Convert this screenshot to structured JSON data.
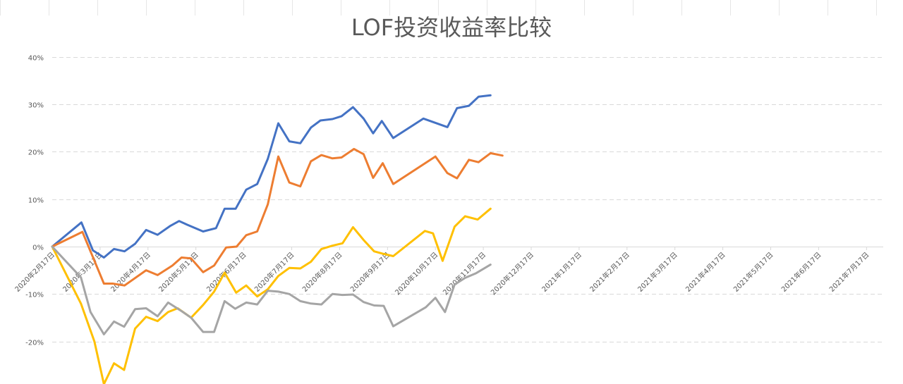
{
  "chart_data": {
    "type": "line",
    "title": "LOF投资收益率比较",
    "xlabel": "",
    "ylabel": "",
    "ylim": [
      -0.3,
      0.4
    ],
    "grid": true,
    "legend": "none",
    "y_ticks": [
      {
        "value": 0.4,
        "label": "40%"
      },
      {
        "value": 0.3,
        "label": "30%"
      },
      {
        "value": 0.2,
        "label": "20%"
      },
      {
        "value": 0.1,
        "label": "10%"
      },
      {
        "value": 0.0,
        "label": "0%"
      },
      {
        "value": -0.1,
        "label": "-10%"
      },
      {
        "value": -0.2,
        "label": "-20%"
      }
    ],
    "x_ticks": [
      "2020年2月17日",
      "2020年3月17日",
      "2020年4月17日",
      "2020年5月17日",
      "2020年6月17日",
      "2020年7月17日",
      "2020年8月17日",
      "2020年9月17日",
      "2020年10月17日",
      "2020年11月17日",
      "2020年12月17日",
      "2021年1月17日",
      "2021年2月17日",
      "2021年3月17日",
      "2021年4月17日",
      "2021年5月17日",
      "2021年6月17日",
      "2021年7月17日"
    ],
    "series": [
      {
        "color": "#4472c4",
        "values": [
          [
            0,
            0
          ],
          [
            0.61,
            0.051
          ],
          [
            0.85,
            -0.008
          ],
          [
            1.08,
            -0.023
          ],
          [
            1.29,
            -0.005
          ],
          [
            1.51,
            -0.01
          ],
          [
            1.73,
            0.006
          ],
          [
            1.96,
            0.035
          ],
          [
            2.2,
            0.025
          ],
          [
            2.47,
            0.044
          ],
          [
            2.65,
            0.054
          ],
          [
            2.82,
            0.046
          ],
          [
            3.15,
            0.032
          ],
          [
            3.42,
            0.039
          ],
          [
            3.6,
            0.08
          ],
          [
            3.83,
            0.08
          ],
          [
            4.05,
            0.12
          ],
          [
            4.28,
            0.132
          ],
          [
            4.5,
            0.185
          ],
          [
            4.72,
            0.26
          ],
          [
            4.95,
            0.222
          ],
          [
            5.18,
            0.218
          ],
          [
            5.4,
            0.251
          ],
          [
            5.6,
            0.266
          ],
          [
            5.85,
            0.269
          ],
          [
            6.04,
            0.275
          ],
          [
            6.28,
            0.294
          ],
          [
            6.5,
            0.27
          ],
          [
            6.7,
            0.239
          ],
          [
            6.88,
            0.265
          ],
          [
            7.12,
            0.229
          ],
          [
            7.75,
            0.27
          ],
          [
            8.25,
            0.252
          ],
          [
            8.45,
            0.292
          ],
          [
            8.7,
            0.297
          ],
          [
            8.9,
            0.316
          ],
          [
            9.15,
            0.319
          ]
        ]
      },
      {
        "color": "#ed7d31",
        "values": [
          [
            0,
            0
          ],
          [
            0.63,
            0.031
          ],
          [
            1.08,
            -0.078
          ],
          [
            1.26,
            -0.078
          ],
          [
            1.51,
            -0.082
          ],
          [
            1.96,
            -0.05
          ],
          [
            2.2,
            -0.06
          ],
          [
            2.51,
            -0.04
          ],
          [
            2.7,
            -0.023
          ],
          [
            2.9,
            -0.025
          ],
          [
            3.15,
            -0.054
          ],
          [
            3.38,
            -0.04
          ],
          [
            3.63,
            -0.002
          ],
          [
            3.85,
            0
          ],
          [
            4.05,
            0.024
          ],
          [
            4.28,
            0.032
          ],
          [
            4.5,
            0.089
          ],
          [
            4.72,
            0.19
          ],
          [
            4.95,
            0.135
          ],
          [
            5.18,
            0.127
          ],
          [
            5.4,
            0.18
          ],
          [
            5.62,
            0.193
          ],
          [
            5.85,
            0.186
          ],
          [
            6.04,
            0.188
          ],
          [
            6.3,
            0.206
          ],
          [
            6.5,
            0.195
          ],
          [
            6.7,
            0.145
          ],
          [
            6.9,
            0.176
          ],
          [
            7.12,
            0.132
          ],
          [
            8.0,
            0.19
          ],
          [
            8.25,
            0.155
          ],
          [
            8.45,
            0.144
          ],
          [
            8.7,
            0.183
          ],
          [
            8.9,
            0.178
          ],
          [
            9.15,
            0.197
          ],
          [
            9.4,
            0.192
          ]
        ]
      },
      {
        "color": "#ffc000",
        "values": [
          [
            0,
            0
          ],
          [
            0.6,
            -0.12
          ],
          [
            0.88,
            -0.2
          ],
          [
            1.08,
            -0.29
          ],
          [
            1.29,
            -0.246
          ],
          [
            1.5,
            -0.26
          ],
          [
            1.73,
            -0.173
          ],
          [
            1.96,
            -0.148
          ],
          [
            2.2,
            -0.157
          ],
          [
            2.42,
            -0.138
          ],
          [
            2.62,
            -0.13
          ],
          [
            2.9,
            -0.15
          ],
          [
            3.15,
            -0.123
          ],
          [
            3.38,
            -0.095
          ],
          [
            3.6,
            -0.055
          ],
          [
            3.84,
            -0.097
          ],
          [
            4.05,
            -0.082
          ],
          [
            4.28,
            -0.105
          ],
          [
            4.5,
            -0.09
          ],
          [
            4.72,
            -0.062
          ],
          [
            4.95,
            -0.045
          ],
          [
            5.18,
            -0.046
          ],
          [
            5.4,
            -0.032
          ],
          [
            5.62,
            -0.005
          ],
          [
            5.85,
            0.002
          ],
          [
            6.06,
            0.007
          ],
          [
            6.28,
            0.041
          ],
          [
            6.5,
            0.014
          ],
          [
            6.72,
            -0.01
          ],
          [
            6.9,
            -0.015
          ],
          [
            7.12,
            -0.02
          ],
          [
            7.78,
            0.033
          ],
          [
            7.95,
            0.028
          ],
          [
            8.15,
            -0.03
          ],
          [
            8.4,
            0.042
          ],
          [
            8.62,
            0.064
          ],
          [
            8.88,
            0.057
          ],
          [
            9.15,
            0.08
          ]
        ]
      },
      {
        "color": "#a5a5a5",
        "values": [
          [
            0,
            0
          ],
          [
            0.6,
            -0.065
          ],
          [
            0.8,
            -0.138
          ],
          [
            1.08,
            -0.185
          ],
          [
            1.29,
            -0.158
          ],
          [
            1.5,
            -0.169
          ],
          [
            1.73,
            -0.132
          ],
          [
            1.96,
            -0.13
          ],
          [
            2.2,
            -0.147
          ],
          [
            2.42,
            -0.118
          ],
          [
            2.7,
            -0.136
          ],
          [
            2.9,
            -0.15
          ],
          [
            3.15,
            -0.18
          ],
          [
            3.38,
            -0.18
          ],
          [
            3.6,
            -0.115
          ],
          [
            3.82,
            -0.131
          ],
          [
            4.05,
            -0.118
          ],
          [
            4.28,
            -0.122
          ],
          [
            4.5,
            -0.093
          ],
          [
            4.72,
            -0.095
          ],
          [
            4.95,
            -0.1
          ],
          [
            5.18,
            -0.115
          ],
          [
            5.4,
            -0.12
          ],
          [
            5.62,
            -0.122
          ],
          [
            5.85,
            -0.1
          ],
          [
            6.06,
            -0.102
          ],
          [
            6.28,
            -0.101
          ],
          [
            6.5,
            -0.117
          ],
          [
            6.72,
            -0.124
          ],
          [
            6.92,
            -0.125
          ],
          [
            7.12,
            -0.168
          ],
          [
            7.8,
            -0.128
          ],
          [
            8.0,
            -0.108
          ],
          [
            8.2,
            -0.138
          ],
          [
            8.4,
            -0.08
          ],
          [
            8.62,
            -0.066
          ],
          [
            8.85,
            -0.056
          ],
          [
            9.15,
            -0.038
          ]
        ]
      }
    ]
  }
}
